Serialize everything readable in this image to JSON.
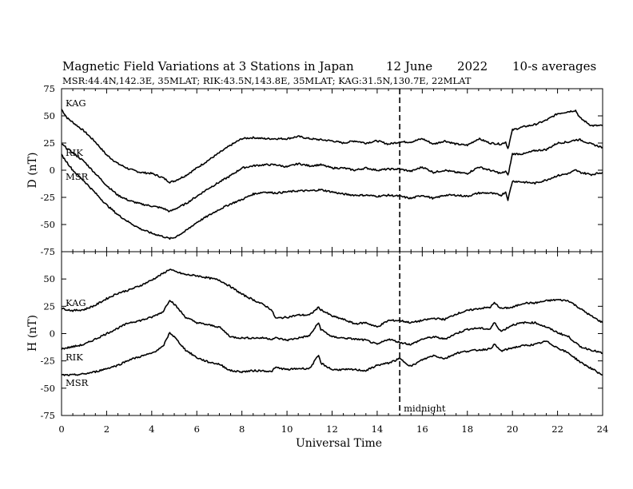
{
  "chart_data": [
    {
      "type": "line",
      "panel": "D",
      "title": "Magnetic Field Variations at 3 Stations in Japan",
      "date": "12 June",
      "year": "2022",
      "averaging": "10-s averages",
      "subtitle": "MSR:44.4N,142.3E, 35MLAT;  RIK:43.5N,143.8E, 35MLAT;  KAG:31.5N,130.7E, 22MLAT",
      "ylabel": "D (nT)",
      "xlim": [
        0,
        24
      ],
      "ylim": [
        -75,
        75
      ],
      "yticks": [
        "75",
        "50",
        "25",
        "0",
        "-25",
        "-50",
        "-75"
      ],
      "grid": false,
      "series": [
        {
          "name": "KAG",
          "x": [
            0,
            0.25,
            0.5,
            0.75,
            1,
            1.5,
            2,
            2.5,
            3,
            3.5,
            4,
            4.5,
            4.8,
            5,
            5.5,
            6,
            6.5,
            7,
            7.5,
            8,
            8.5,
            9,
            9.5,
            10,
            10.5,
            11,
            11.5,
            12,
            12.5,
            13,
            13.5,
            14,
            14.5,
            15,
            15.5,
            16,
            16.5,
            17,
            17.5,
            18,
            18.5,
            19,
            19.5,
            19.7,
            19.8,
            20,
            20.5,
            21,
            21.5,
            22,
            22.5,
            22.8,
            23,
            23.5,
            24
          ],
          "y": [
            56,
            48,
            44,
            40,
            36,
            26,
            14,
            6,
            1,
            -2,
            -3,
            -7,
            -11,
            -10,
            -5,
            2,
            9,
            16,
            23,
            29,
            30,
            29,
            29,
            29,
            31,
            29,
            28,
            27,
            25,
            27,
            25,
            27,
            24,
            26,
            26,
            29,
            24,
            27,
            24,
            23,
            29,
            25,
            24,
            26,
            20,
            37,
            40,
            42,
            46,
            52,
            54,
            55,
            48,
            41,
            41
          ]
        },
        {
          "name": "RIK",
          "x": [
            0,
            0.25,
            0.5,
            1,
            1.5,
            2,
            2.5,
            3,
            3.5,
            4,
            4.5,
            4.8,
            5,
            5.5,
            6,
            6.5,
            7,
            7.5,
            8,
            8.5,
            9,
            9.5,
            10,
            10.5,
            11,
            11.5,
            12,
            12.5,
            13,
            13.5,
            14,
            14.5,
            15,
            15.5,
            16,
            16.5,
            17,
            17.5,
            18,
            18.5,
            19,
            19.5,
            19.7,
            19.8,
            20,
            20.5,
            21,
            21.5,
            22,
            22.5,
            22.8,
            23,
            23.5,
            24
          ],
          "y": [
            24,
            20,
            16,
            8,
            -3,
            -14,
            -23,
            -28,
            -31,
            -33,
            -35,
            -38,
            -36,
            -31,
            -24,
            -17,
            -11,
            -5,
            2,
            4,
            5,
            5,
            3,
            6,
            4,
            5,
            2,
            2,
            0,
            2,
            0,
            1,
            1,
            -1,
            3,
            -2,
            0,
            -2,
            -3,
            3,
            0,
            -3,
            -1,
            -5,
            15,
            15,
            18,
            19,
            25,
            26,
            28,
            28,
            24,
            21
          ]
        },
        {
          "name": "MSR",
          "x": [
            0,
            0.25,
            0.5,
            1,
            1.5,
            2,
            2.5,
            3,
            3.5,
            4,
            4.5,
            4.8,
            5,
            5.5,
            6,
            6.5,
            7,
            7.5,
            8,
            8.5,
            9,
            9.5,
            10,
            10.5,
            11,
            11.5,
            12,
            12.5,
            13,
            13.5,
            14,
            14.5,
            15,
            15.5,
            16,
            16.5,
            17,
            17.5,
            18,
            18.5,
            19,
            19.5,
            19.7,
            19.8,
            20,
            20.5,
            21,
            21.5,
            22,
            22.5,
            22.8,
            23,
            23.5,
            24
          ],
          "y": [
            14,
            7,
            0,
            -10,
            -21,
            -32,
            -41,
            -48,
            -54,
            -58,
            -61,
            -63,
            -62,
            -56,
            -48,
            -42,
            -36,
            -31,
            -27,
            -22,
            -20,
            -21,
            -20,
            -19,
            -19,
            -18,
            -20,
            -22,
            -23,
            -23,
            -24,
            -23,
            -24,
            -26,
            -23,
            -26,
            -23,
            -23,
            -24,
            -21,
            -21,
            -23,
            -20,
            -27,
            -10,
            -11,
            -12,
            -9,
            -5,
            -3,
            0,
            -2,
            -4,
            -2
          ]
        }
      ],
      "vline": {
        "x": 15
      }
    },
    {
      "type": "line",
      "panel": "H",
      "ylabel": "H (nT)",
      "xlabel": "Universal Time",
      "xlim": [
        0,
        24
      ],
      "ylim": [
        -75,
        75
      ],
      "xticks": [
        "0",
        "2",
        "4",
        "6",
        "8",
        "10",
        "12",
        "14",
        "16",
        "18",
        "20",
        "22",
        "24"
      ],
      "yticks": [
        "50",
        "25",
        "0",
        "-25",
        "-50",
        "-75"
      ],
      "grid": false,
      "series": [
        {
          "name": "KAG",
          "x": [
            0,
            0.5,
            1,
            1.5,
            2,
            2.5,
            3,
            3.5,
            4,
            4.5,
            4.8,
            5,
            5.5,
            6,
            6.5,
            7,
            7.5,
            8,
            8.5,
            9,
            9.3,
            9.5,
            10,
            10.5,
            11,
            11.4,
            11.5,
            12,
            12.5,
            13,
            13.5,
            14,
            14.5,
            15,
            15.5,
            16,
            16.5,
            17,
            17.5,
            18,
            18.5,
            19,
            19.2,
            19.5,
            20,
            20.5,
            21,
            21.5,
            22,
            22.5,
            23,
            23.5,
            24
          ],
          "y": [
            23,
            21,
            22,
            26,
            32,
            37,
            40,
            44,
            49,
            55,
            59,
            57,
            54,
            53,
            51,
            49,
            43,
            36,
            31,
            26,
            22,
            14,
            15,
            17,
            17,
            24,
            22,
            16,
            13,
            9,
            10,
            6,
            12,
            12,
            10,
            12,
            14,
            13,
            18,
            21,
            23,
            24,
            28,
            23,
            24,
            28,
            28,
            30,
            31,
            30,
            23,
            16,
            10
          ]
        },
        {
          "name": "RIK",
          "x": [
            0,
            0.5,
            1,
            1.5,
            2,
            2.5,
            3,
            3.5,
            4,
            4.5,
            4.8,
            5,
            5.5,
            6,
            6.5,
            7,
            7.5,
            8,
            8.5,
            9,
            9.3,
            9.5,
            10,
            10.5,
            11,
            11.4,
            11.5,
            12,
            12.5,
            13,
            13.5,
            14,
            14.5,
            15,
            15.5,
            16,
            16.5,
            17,
            17.5,
            18,
            18.5,
            19,
            19.2,
            19.5,
            20,
            20.5,
            21,
            21.5,
            22,
            22.5,
            23,
            23.5,
            24
          ],
          "y": [
            -14,
            -12,
            -10,
            -5,
            0,
            5,
            10,
            12,
            15,
            20,
            31,
            27,
            15,
            10,
            8,
            6,
            -3,
            -4,
            -4,
            -4,
            -5,
            -4,
            -6,
            -4,
            -2,
            10,
            4,
            -3,
            -4,
            -5,
            -6,
            -10,
            -5,
            -8,
            -10,
            -5,
            -3,
            -5,
            0,
            4,
            5,
            4,
            10,
            2,
            8,
            10,
            10,
            6,
            1,
            -3,
            -12,
            -15,
            -18
          ]
        },
        {
          "name": "MSR",
          "x": [
            0,
            0.5,
            1,
            1.5,
            2,
            2.5,
            3,
            3.5,
            4,
            4.5,
            4.8,
            5,
            5.5,
            6,
            6.5,
            7,
            7.5,
            8,
            8.5,
            9,
            9.3,
            9.5,
            10,
            10.5,
            11,
            11.4,
            11.5,
            12,
            12.5,
            13,
            13.5,
            14,
            14.5,
            15,
            15.5,
            16,
            16.5,
            17,
            17.5,
            18,
            18.5,
            19,
            19.2,
            19.5,
            20,
            20.5,
            21,
            21.5,
            22,
            22.5,
            23,
            23.5,
            24
          ],
          "y": [
            -38,
            -38,
            -37,
            -35,
            -32,
            -29,
            -24,
            -21,
            -18,
            -12,
            1,
            -3,
            -15,
            -22,
            -26,
            -28,
            -34,
            -35,
            -34,
            -34,
            -35,
            -31,
            -33,
            -32,
            -32,
            -20,
            -27,
            -33,
            -33,
            -33,
            -34,
            -29,
            -27,
            -23,
            -30,
            -24,
            -20,
            -23,
            -18,
            -16,
            -15,
            -14,
            -10,
            -16,
            -13,
            -11,
            -10,
            -7,
            -13,
            -18,
            -26,
            -32,
            -38
          ]
        }
      ],
      "vline": {
        "x": 15,
        "label": "midnight"
      }
    }
  ]
}
